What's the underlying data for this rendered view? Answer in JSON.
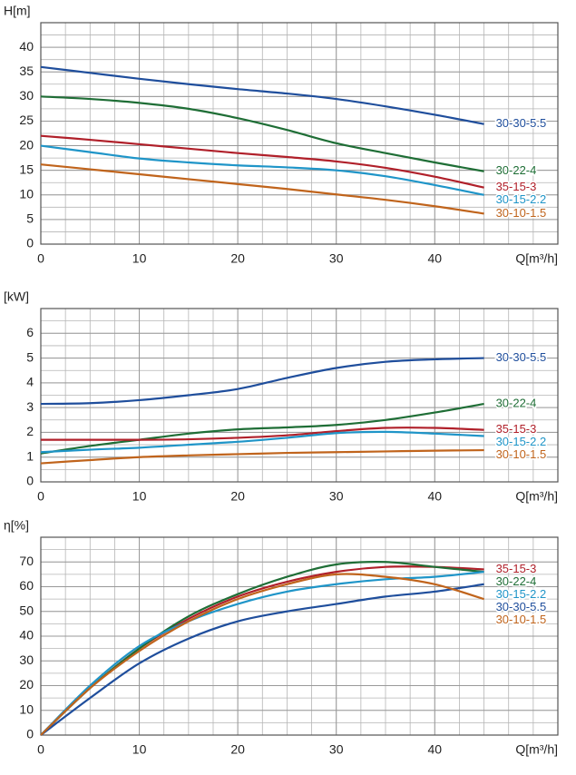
{
  "chart_data": [
    {
      "type": "line",
      "y_label": "H[m]",
      "x_label": "Q[m³/h]",
      "x": [
        0,
        5,
        10,
        15,
        20,
        25,
        30,
        35,
        40,
        45
      ],
      "xlim": [
        0,
        52.5
      ],
      "ylim": [
        0,
        45
      ],
      "xticks": [
        0,
        10,
        20,
        30,
        40
      ],
      "yticks": [
        0,
        5,
        10,
        15,
        20,
        25,
        30,
        35,
        40
      ],
      "grid": true,
      "series": [
        {
          "name": "30-30-5.5",
          "color": "#1f4e9c",
          "values": [
            36,
            34.8,
            33.6,
            32.5,
            31.5,
            30.6,
            29.5,
            28,
            26.3,
            24.4
          ]
        },
        {
          "name": "30-22-4",
          "color": "#1f6e36",
          "values": [
            30,
            29.5,
            28.7,
            27.5,
            25.6,
            23.2,
            20.5,
            18.5,
            16.6,
            14.8
          ]
        },
        {
          "name": "35-15-3",
          "color": "#b0202a",
          "values": [
            22,
            21.2,
            20.3,
            19.4,
            18.5,
            17.7,
            16.8,
            15.5,
            13.7,
            11.5
          ]
        },
        {
          "name": "30-15-2.2",
          "color": "#1f95c8",
          "values": [
            20,
            18.7,
            17.4,
            16.6,
            16,
            15.6,
            15,
            13.8,
            12,
            10
          ]
        },
        {
          "name": "30-10-1.5",
          "color": "#c0641c",
          "values": [
            16.2,
            15.2,
            14.2,
            13.2,
            12.2,
            11.2,
            10.1,
            9,
            7.7,
            6.2
          ]
        }
      ]
    },
    {
      "type": "line",
      "y_label": "[kW]",
      "x_label": "Q[m³/h]",
      "x": [
        0,
        5,
        10,
        15,
        20,
        25,
        30,
        35,
        40,
        45
      ],
      "xlim": [
        0,
        52.5
      ],
      "ylim": [
        0,
        7
      ],
      "xticks": [
        0,
        10,
        20,
        30,
        40
      ],
      "yticks": [
        0,
        1,
        2,
        3,
        4,
        5,
        6
      ],
      "grid": true,
      "series": [
        {
          "name": "30-30-5.5",
          "color": "#1f4e9c",
          "values": [
            3.15,
            3.18,
            3.3,
            3.5,
            3.75,
            4.2,
            4.6,
            4.85,
            4.95,
            5.0
          ]
        },
        {
          "name": "30-22-4",
          "color": "#1f6e36",
          "values": [
            1.15,
            1.45,
            1.7,
            1.95,
            2.12,
            2.2,
            2.3,
            2.5,
            2.8,
            3.15
          ]
        },
        {
          "name": "35-15-3",
          "color": "#b0202a",
          "values": [
            1.7,
            1.7,
            1.7,
            1.72,
            1.78,
            1.88,
            2.05,
            2.18,
            2.18,
            2.1
          ]
        },
        {
          "name": "30-15-2.2",
          "color": "#1f95c8",
          "values": [
            1.2,
            1.3,
            1.38,
            1.5,
            1.62,
            1.78,
            1.97,
            2.02,
            1.95,
            1.85
          ]
        },
        {
          "name": "30-10-1.5",
          "color": "#c0641c",
          "values": [
            0.75,
            0.88,
            1.0,
            1.07,
            1.12,
            1.17,
            1.2,
            1.23,
            1.26,
            1.28
          ]
        }
      ]
    },
    {
      "type": "line",
      "y_label": "η[%]",
      "x_label": "Q[m³/h]",
      "x": [
        0,
        5,
        10,
        15,
        20,
        25,
        30,
        35,
        40,
        45
      ],
      "xlim": [
        0,
        52.5
      ],
      "ylim": [
        0,
        80
      ],
      "xticks": [
        0,
        10,
        20,
        30,
        40
      ],
      "yticks": [
        0,
        10,
        20,
        30,
        40,
        50,
        60,
        70
      ],
      "grid": true,
      "series": [
        {
          "name": "35-15-3",
          "color": "#b0202a",
          "values": [
            0,
            19,
            35,
            47,
            56,
            62,
            66,
            68,
            68,
            67
          ]
        },
        {
          "name": "30-22-4",
          "color": "#1f6e36",
          "values": [
            0,
            19,
            35,
            48,
            57,
            64,
            69,
            70,
            68,
            66
          ]
        },
        {
          "name": "30-15-2.2",
          "color": "#1f95c8",
          "values": [
            0,
            20,
            36,
            46,
            53,
            58,
            61,
            63,
            64,
            66
          ]
        },
        {
          "name": "30-30-5.5",
          "color": "#1f4e9c",
          "values": [
            0,
            15,
            29,
            39,
            46,
            50,
            53,
            56,
            58,
            61
          ]
        },
        {
          "name": "30-10-1.5",
          "color": "#c0641c",
          "values": [
            0,
            19,
            34,
            46,
            55,
            61,
            65,
            64,
            61,
            55
          ]
        }
      ]
    }
  ]
}
